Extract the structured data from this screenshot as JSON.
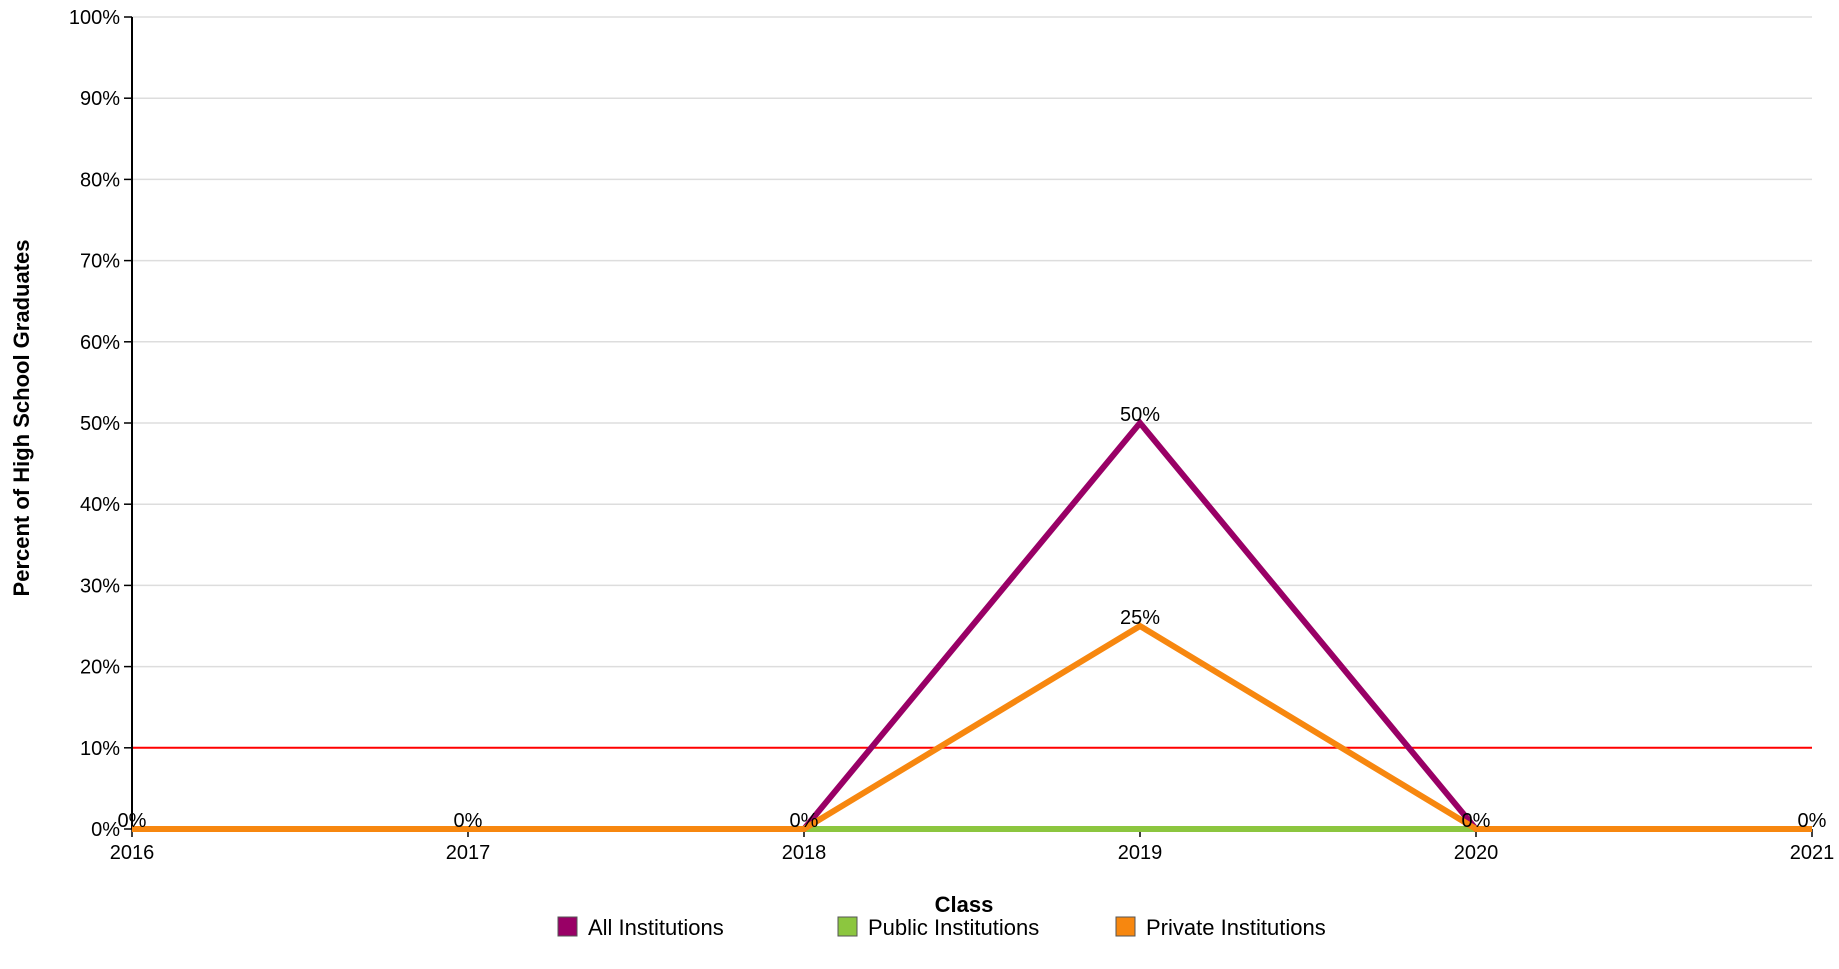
{
  "chart_data": {
    "type": "line",
    "title": "",
    "xlabel": "Class",
    "ylabel": "Percent of High School Graduates",
    "x": [
      "2016",
      "2017",
      "2018",
      "2019",
      "2020",
      "2021"
    ],
    "ylim": [
      0,
      100
    ],
    "yticks": [
      "0%",
      "10%",
      "20%",
      "30%",
      "40%",
      "50%",
      "60%",
      "70%",
      "80%",
      "90%",
      "100%"
    ],
    "grid": true,
    "legend_position": "bottom",
    "series": [
      {
        "name": "All Institutions",
        "color": "#990066",
        "values": [
          0,
          0,
          0,
          50,
          0,
          0
        ]
      },
      {
        "name": "Public Institutions",
        "color": "#8cc63f",
        "values": [
          0,
          0,
          0,
          0,
          0,
          0
        ]
      },
      {
        "name": "Private Institutions",
        "color": "#f7870f",
        "values": [
          0,
          0,
          0,
          25,
          0,
          0
        ]
      }
    ],
    "reference_line": {
      "value": 10,
      "color": "#ff0000"
    },
    "data_labels": [
      {
        "x": "2016",
        "value": 0,
        "text": "0%"
      },
      {
        "x": "2017",
        "value": 0,
        "text": "0%"
      },
      {
        "x": "2018",
        "value": 0,
        "text": "0%"
      },
      {
        "x": "2019",
        "value": 50,
        "text": "50%"
      },
      {
        "x": "2019",
        "value": 25,
        "text": "25%"
      },
      {
        "x": "2020",
        "value": 0,
        "text": "0%"
      },
      {
        "x": "2021",
        "value": 0,
        "text": "0%"
      }
    ]
  }
}
